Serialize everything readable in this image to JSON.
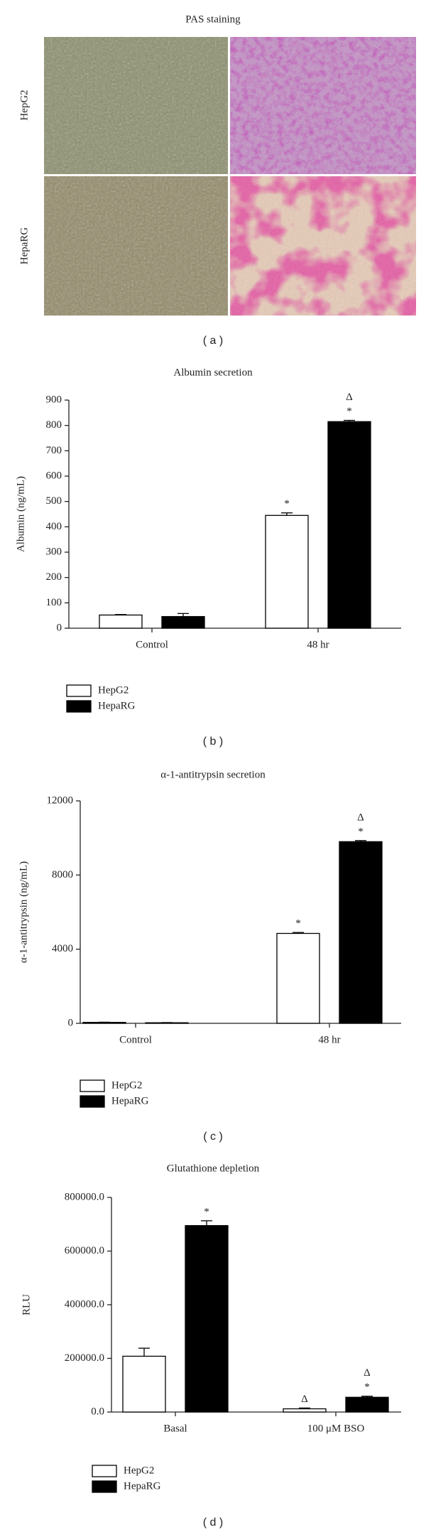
{
  "figure": {
    "panel_a": {
      "title": "PAS staining",
      "rows": [
        "HepG2",
        "HepaRG"
      ],
      "caption": "( a )"
    }
  },
  "chart_data": [
    {
      "type": "bar",
      "title": "Albumin secretion",
      "y_label": "Albumin (ng/mL)",
      "caption": "( b )",
      "categories": [
        "Control",
        "48 hr"
      ],
      "series": [
        {
          "name": "HepG2",
          "color": "#ffffff",
          "values": [
            52,
            445
          ],
          "errors": [
            2,
            10
          ],
          "annotations": [
            [],
            [
              "*"
            ]
          ]
        },
        {
          "name": "HepaRG",
          "color": "#000000",
          "values": [
            46,
            815
          ],
          "errors": [
            12,
            5
          ],
          "annotations": [
            [],
            [
              "Δ",
              "*"
            ]
          ]
        }
      ],
      "ylim": [
        0,
        900
      ],
      "yticks": [
        0,
        100,
        200,
        300,
        400,
        500,
        600,
        700,
        800,
        900
      ]
    },
    {
      "type": "bar",
      "title": "α-1-antitrypsin secretion",
      "y_label": "α-1-antitrypsin (ng/mL)",
      "caption": "( c )",
      "categories": [
        "Control",
        "48 hr"
      ],
      "series": [
        {
          "name": "HepG2",
          "color": "#ffffff",
          "values": [
            50,
            4850
          ],
          "errors": [
            10,
            50
          ],
          "annotations": [
            [],
            [
              "*"
            ]
          ]
        },
        {
          "name": "HepaRG",
          "color": "#000000",
          "values": [
            30,
            9800
          ],
          "errors": [
            10,
            60
          ],
          "annotations": [
            [],
            [
              "Δ",
              "*"
            ]
          ]
        }
      ],
      "ylim": [
        0,
        12000
      ],
      "yticks": [
        0,
        4000,
        8000,
        12000
      ]
    },
    {
      "type": "bar",
      "title": "Glutathione depletion",
      "y_label": "RLU",
      "caption": "( d )",
      "categories": [
        "Basal",
        "100 μM BSO"
      ],
      "series": [
        {
          "name": "HepG2",
          "color": "#ffffff",
          "values": [
            208000,
            12000
          ],
          "errors": [
            30000,
            3000
          ],
          "annotations": [
            [],
            [
              "Δ"
            ]
          ]
        },
        {
          "name": "HepaRG",
          "color": "#000000",
          "values": [
            695000,
            55000
          ],
          "errors": [
            18000,
            4000
          ],
          "annotations": [
            [
              "*"
            ],
            [
              "Δ",
              "*"
            ]
          ]
        }
      ],
      "ylim": [
        0,
        800000
      ],
      "yticks": [
        {
          "value": 0,
          "label": "0.0"
        },
        {
          "value": 200000,
          "label": "200000.0"
        },
        {
          "value": 400000,
          "label": "400000.0"
        },
        {
          "value": 600000,
          "label": "600000.0"
        },
        {
          "value": 800000,
          "label": "800000.0"
        }
      ]
    }
  ]
}
